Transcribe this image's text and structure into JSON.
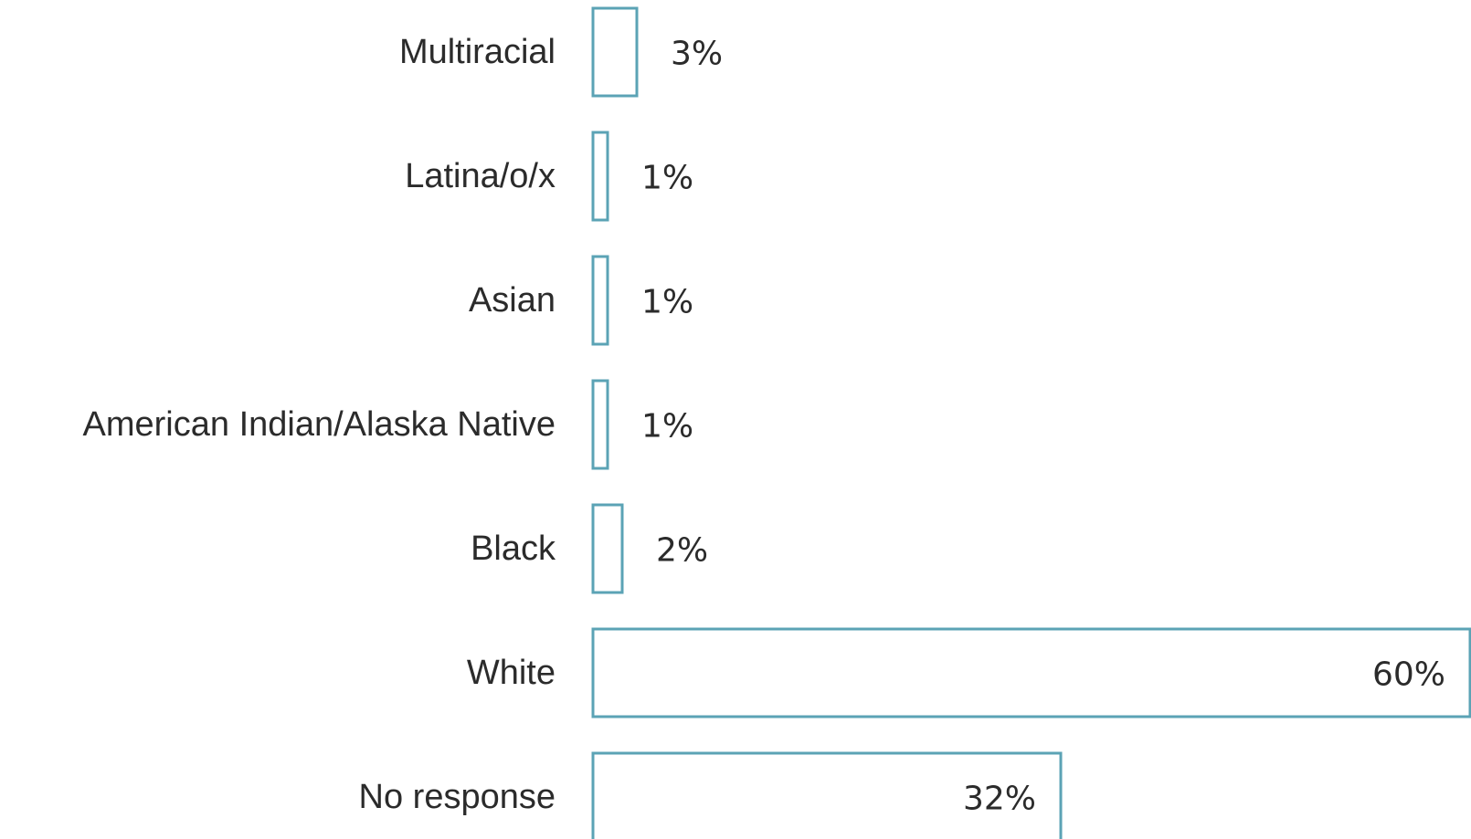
{
  "chart_data": {
    "type": "bar",
    "orientation": "horizontal",
    "categories": [
      "Multiracial",
      "Latina/o/x",
      "Asian",
      "American Indian/Alaska Native",
      "Black",
      "White",
      "No response"
    ],
    "values": [
      3,
      1,
      1,
      1,
      2,
      60,
      32
    ],
    "value_labels": [
      "3%",
      "1%",
      "1%",
      "1%",
      "2%",
      "60%",
      "32%"
    ],
    "unit": "%",
    "xlim": [
      0,
      60
    ],
    "grid": false,
    "legend": "none",
    "colors": {
      "bar_outline": "#5ba3b5",
      "bar_fill": "#ffffff",
      "text": "#2b2b2b"
    }
  }
}
